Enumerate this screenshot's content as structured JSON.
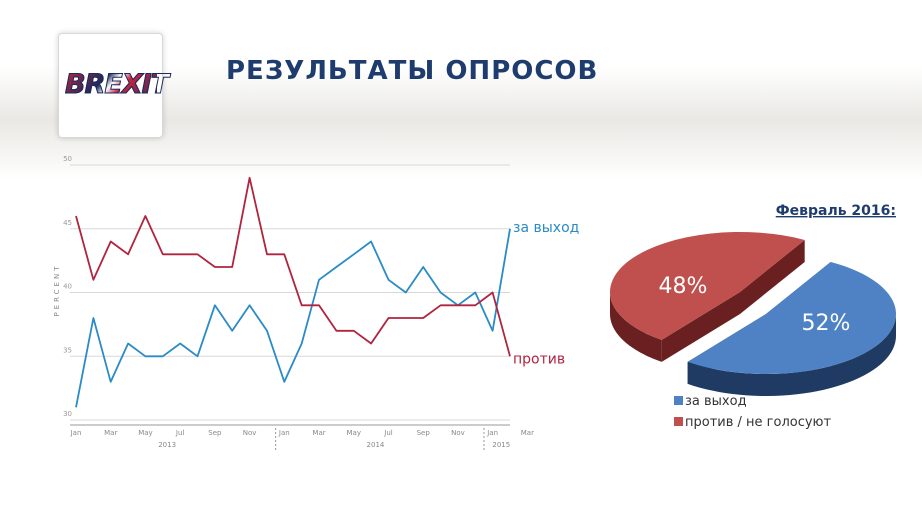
{
  "page": {
    "title": "РЕЗУЛЬТАТЫ ОПРОСОВ",
    "logo_text": "BREXIT"
  },
  "colors": {
    "series_leave": "#2a8bc7",
    "series_remain": "#b0243f",
    "pie_leave": "#4f82c4",
    "pie_leave_side": "#1f3a63",
    "pie_remain": "#c0504d",
    "pie_remain_side": "#6a2020",
    "title": "#1f3c6e",
    "grid": "#d8d8d8"
  },
  "chart_data": [
    {
      "type": "line",
      "ylabel": "PERCENT",
      "ylim": [
        30,
        50
      ],
      "yticks": [
        "30",
        "35",
        "40",
        "45",
        "50"
      ],
      "x_tick_labels": [
        "Jan",
        "Mar",
        "May",
        "Jul",
        "Sep",
        "Nov",
        "Jan",
        "Mar",
        "May",
        "Jul",
        "Sep",
        "Nov",
        "Jan",
        "Mar"
      ],
      "year_labels": [
        "2013",
        "2014",
        "2015"
      ],
      "grid": true,
      "series": [
        {
          "name": "за выход",
          "values": [
            31,
            38,
            33,
            36,
            35,
            35,
            36,
            35,
            39,
            37,
            39,
            37,
            33,
            36,
            41,
            42,
            43,
            44,
            41,
            40,
            42,
            40,
            39,
            40,
            37,
            45
          ]
        },
        {
          "name": "против",
          "values": [
            46,
            41,
            44,
            43,
            46,
            43,
            43,
            43,
            42,
            42,
            49,
            43,
            43,
            39,
            39,
            37,
            37,
            36,
            38,
            38,
            38,
            39,
            39,
            39,
            40,
            35
          ]
        }
      ]
    },
    {
      "type": "pie",
      "title": "Февраль 2016:",
      "slices": [
        {
          "label": "за выход",
          "value": 52,
          "value_label": "52%"
        },
        {
          "label": "против / не голосуют",
          "value": 48,
          "value_label": "48%"
        }
      ],
      "legend_position": "bottom"
    }
  ]
}
